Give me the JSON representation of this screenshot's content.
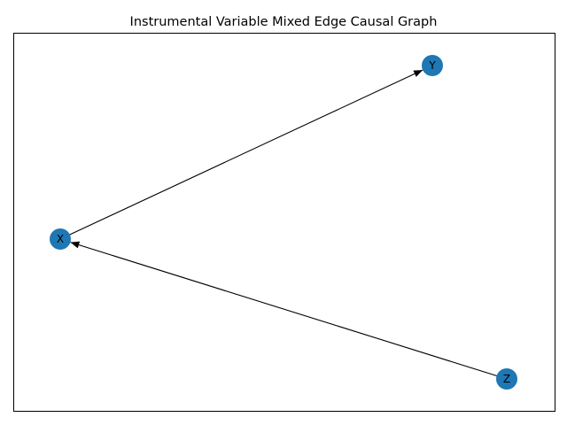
{
  "figure": {
    "title": "Instrumental Variable Mixed Edge Causal Graph"
  },
  "graph": {
    "nodes": [
      {
        "id": "X",
        "label": "X"
      },
      {
        "id": "Y",
        "label": "Y"
      },
      {
        "id": "Z",
        "label": "Z"
      }
    ],
    "edges": [
      {
        "from": "X",
        "to": "Y",
        "type": "directed"
      },
      {
        "from": "Z",
        "to": "X",
        "type": "directed"
      }
    ]
  },
  "colors": {
    "node_fill": "#1f77b4",
    "edge": "#000000",
    "frame": "#000000",
    "background": "#ffffff"
  }
}
